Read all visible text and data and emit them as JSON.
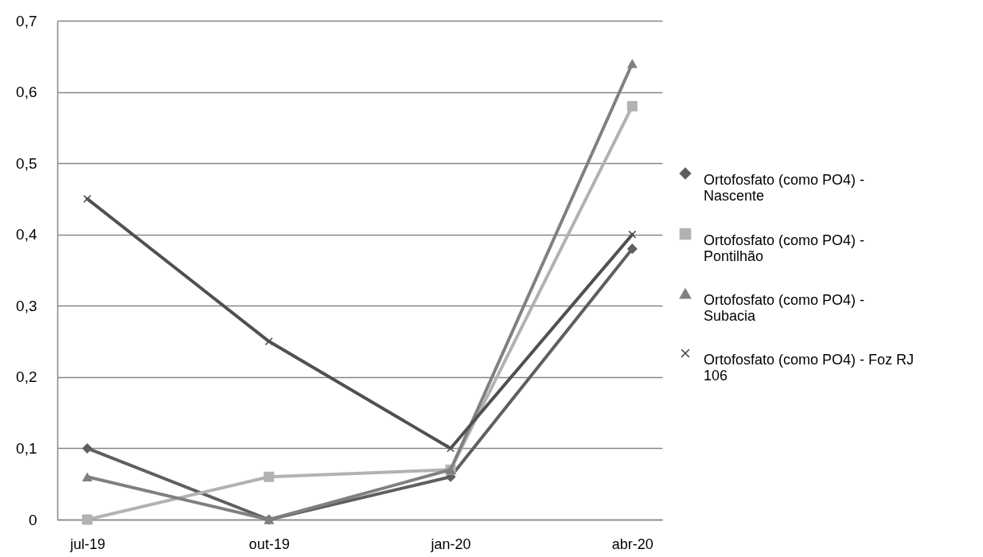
{
  "chart_data": {
    "type": "line",
    "categories": [
      "jul-19",
      "out-19",
      "jan-20",
      "abr-20"
    ],
    "series": [
      {
        "name": "Ortofosfato (como PO4)  - Nascente",
        "color": "#5f5f5f",
        "marker": "diamond",
        "values": [
          0.1,
          0,
          0.06,
          0.38
        ]
      },
      {
        "name": "Ortofosfato (como PO4) - Pontilhão",
        "color": "#b2b2b2",
        "marker": "square",
        "values": [
          0,
          0.06,
          0.07,
          0.58
        ]
      },
      {
        "name": "Ortofosfato (como PO4) - Subacia",
        "color": "#808080",
        "marker": "triangle",
        "values": [
          0.06,
          0,
          0.07,
          0.64
        ]
      },
      {
        "name": "Ortofosfato (como PO4) - Foz RJ 106",
        "color": "#505050",
        "marker": "cross",
        "values": [
          0.45,
          0.25,
          0.1,
          0.4
        ]
      }
    ],
    "ylim": [
      0,
      0.7
    ],
    "yticks": [
      0,
      {
        "value": 0.1,
        "label": "0,1"
      },
      {
        "value": 0.2,
        "label": "0,2"
      },
      {
        "value": 0.3,
        "label": "0,3"
      },
      {
        "value": 0.4,
        "label": "0,4"
      },
      {
        "value": 0.5,
        "label": "0,5"
      },
      {
        "value": 0.6,
        "label": "0,6"
      },
      {
        "value": 0.7,
        "label": "0,7"
      }
    ],
    "grid": "y",
    "legend": "right"
  }
}
